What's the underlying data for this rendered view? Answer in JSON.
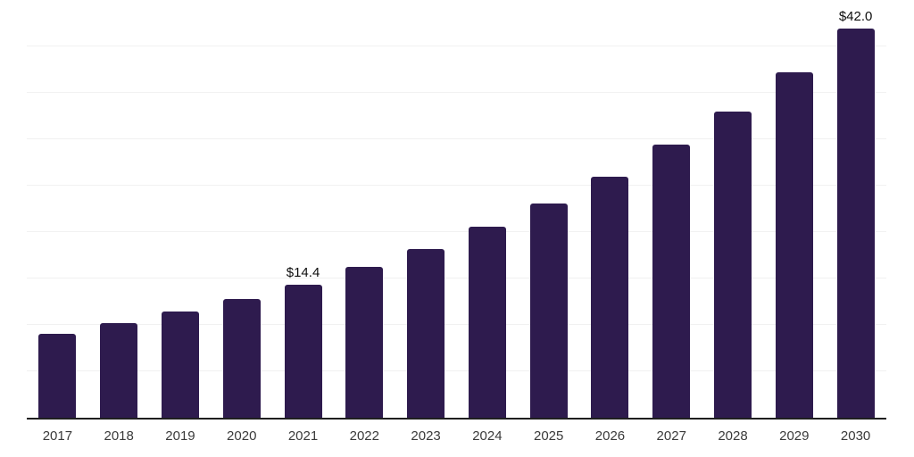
{
  "chart_data": {
    "type": "bar",
    "title": "",
    "xlabel": "",
    "ylabel": "",
    "categories": [
      "2017",
      "2018",
      "2019",
      "2020",
      "2021",
      "2022",
      "2023",
      "2024",
      "2025",
      "2026",
      "2027",
      "2028",
      "2029",
      "2030"
    ],
    "values": [
      9.1,
      10.3,
      11.5,
      12.9,
      14.4,
      16.3,
      18.3,
      20.7,
      23.2,
      26.1,
      29.5,
      33.1,
      37.3,
      42.0
    ],
    "data_labels": {
      "2021": "$14.4",
      "2030": "$42.0"
    },
    "ylim": [
      0,
      45
    ],
    "grid_step": 5,
    "grid": "horizontal-only",
    "legend": "none",
    "y_tick_labels_visible": false,
    "bar_color": "#2e1b4e",
    "grid_color": "#f1f1f1",
    "axis_line_color": "#1f1f1f",
    "tick_label_color": "#3a3a3a",
    "data_label_color": "#0d0d0d",
    "background_color": "#ffffff"
  }
}
